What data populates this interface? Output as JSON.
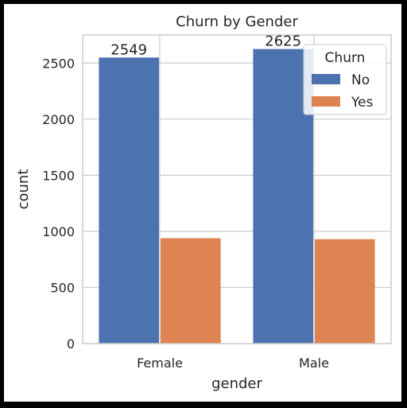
{
  "chart_data": {
    "type": "bar",
    "title": "Churn by Gender",
    "xlabel": "gender",
    "ylabel": "count",
    "categories": [
      "Female",
      "Male"
    ],
    "series": [
      {
        "name": "No",
        "values": [
          2549,
          2625
        ],
        "color": "#4c72b0",
        "labels": [
          "2549",
          "2625"
        ]
      },
      {
        "name": "Yes",
        "values": [
          939,
          930
        ],
        "color": "#dd8452"
      }
    ],
    "ylim": [
      0,
      2750
    ],
    "yticks": [
      0,
      500,
      1000,
      1500,
      2000,
      2500
    ],
    "grid": true,
    "legend": {
      "title": "Churn",
      "placement": "top-right"
    }
  }
}
